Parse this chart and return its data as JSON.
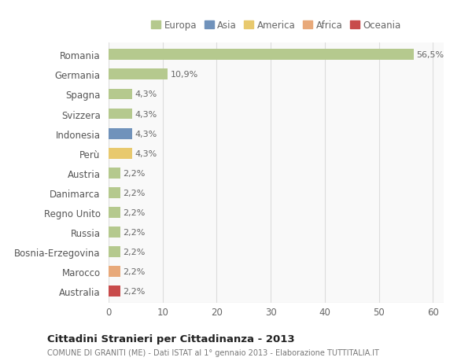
{
  "countries": [
    "Romania",
    "Germania",
    "Spagna",
    "Svizzera",
    "Indonesia",
    "Perù",
    "Austria",
    "Danimarca",
    "Regno Unito",
    "Russia",
    "Bosnia-Erzegovina",
    "Marocco",
    "Australia"
  ],
  "values": [
    56.5,
    10.9,
    4.3,
    4.3,
    4.3,
    4.3,
    2.2,
    2.2,
    2.2,
    2.2,
    2.2,
    2.2,
    2.2
  ],
  "labels": [
    "56,5%",
    "10,9%",
    "4,3%",
    "4,3%",
    "4,3%",
    "4,3%",
    "2,2%",
    "2,2%",
    "2,2%",
    "2,2%",
    "2,2%",
    "2,2%",
    "2,2%"
  ],
  "colors": [
    "#b5c98e",
    "#b5c98e",
    "#b5c98e",
    "#b5c98e",
    "#7092bb",
    "#e8c96e",
    "#b5c98e",
    "#b5c98e",
    "#b5c98e",
    "#b5c98e",
    "#b5c98e",
    "#e8a97a",
    "#c84b4b"
  ],
  "legend_labels": [
    "Europa",
    "Asia",
    "America",
    "Africa",
    "Oceania"
  ],
  "legend_colors": [
    "#b5c98e",
    "#7092bb",
    "#e8c96e",
    "#e8a97a",
    "#c84b4b"
  ],
  "title": "Cittadini Stranieri per Cittadinanza - 2013",
  "subtitle": "COMUNE DI GRANITI (ME) - Dati ISTAT al 1° gennaio 2013 - Elaborazione TUTTITALIA.IT",
  "xlim": [
    0,
    62
  ],
  "xticks": [
    0,
    10,
    20,
    30,
    40,
    50,
    60
  ],
  "bg_color": "#ffffff",
  "plot_bg_color": "#f9f9f9",
  "grid_color": "#dddddd"
}
